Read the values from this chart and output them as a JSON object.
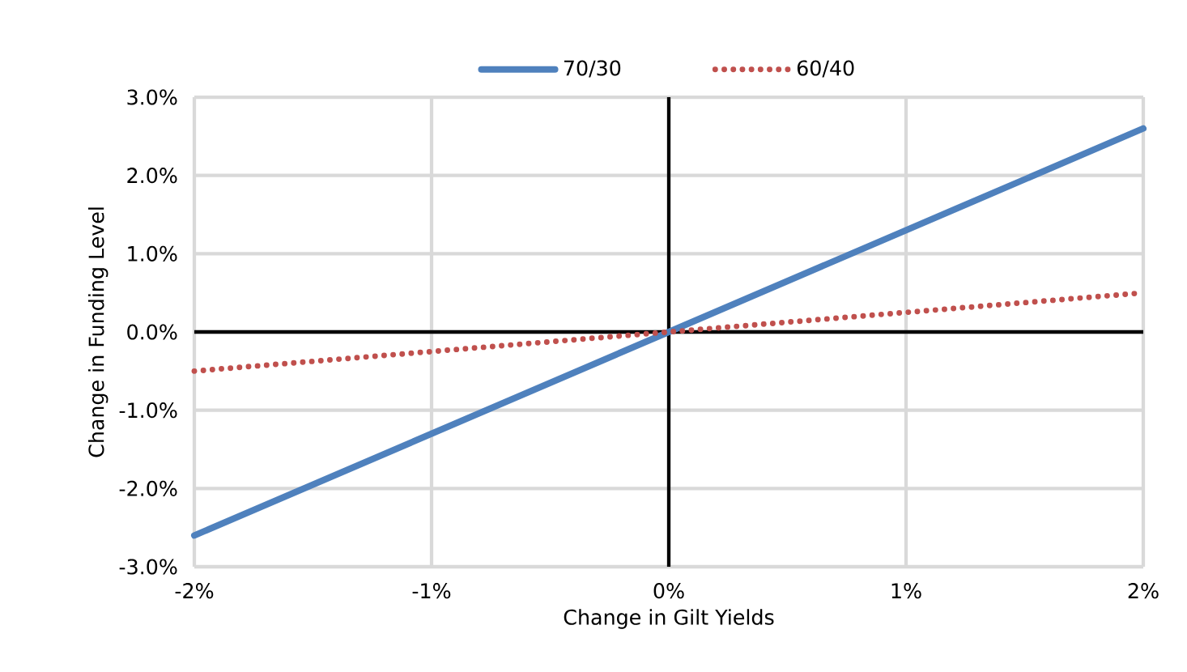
{
  "chart_data": {
    "type": "line",
    "xlabel": "Change in Gilt Yields",
    "ylabel": "Change in Funding Level",
    "x": [
      -2,
      -1,
      0,
      1,
      2
    ],
    "series": [
      {
        "name": "70/30",
        "color": "#4f81bd",
        "line_style": "solid",
        "values": [
          -2.6,
          -1.3,
          0,
          1.3,
          2.6
        ]
      },
      {
        "name": "60/40",
        "color": "#c0504d",
        "line_style": "dotted",
        "values": [
          -0.5,
          -0.25,
          0,
          0.25,
          0.5
        ]
      }
    ],
    "xlim": [
      -2,
      2
    ],
    "xticks": [
      {
        "value": -2,
        "label": "-2%"
      },
      {
        "value": -1,
        "label": "-1%"
      },
      {
        "value": 0,
        "label": "0%"
      },
      {
        "value": 1,
        "label": "1%"
      },
      {
        "value": 2,
        "label": "2%"
      }
    ],
    "ylim": [
      -3,
      3
    ],
    "yticks": [
      {
        "value": -3,
        "label": "-3.0%"
      },
      {
        "value": -2,
        "label": "-2.0%"
      },
      {
        "value": -1,
        "label": "-1.0%"
      },
      {
        "value": 0,
        "label": "0.0%"
      },
      {
        "value": 1,
        "label": "1.0%"
      },
      {
        "value": 2,
        "label": "2.0%"
      },
      {
        "value": 3,
        "label": "3.0%"
      }
    ],
    "grid": true,
    "legend": "top",
    "marker": "none"
  }
}
